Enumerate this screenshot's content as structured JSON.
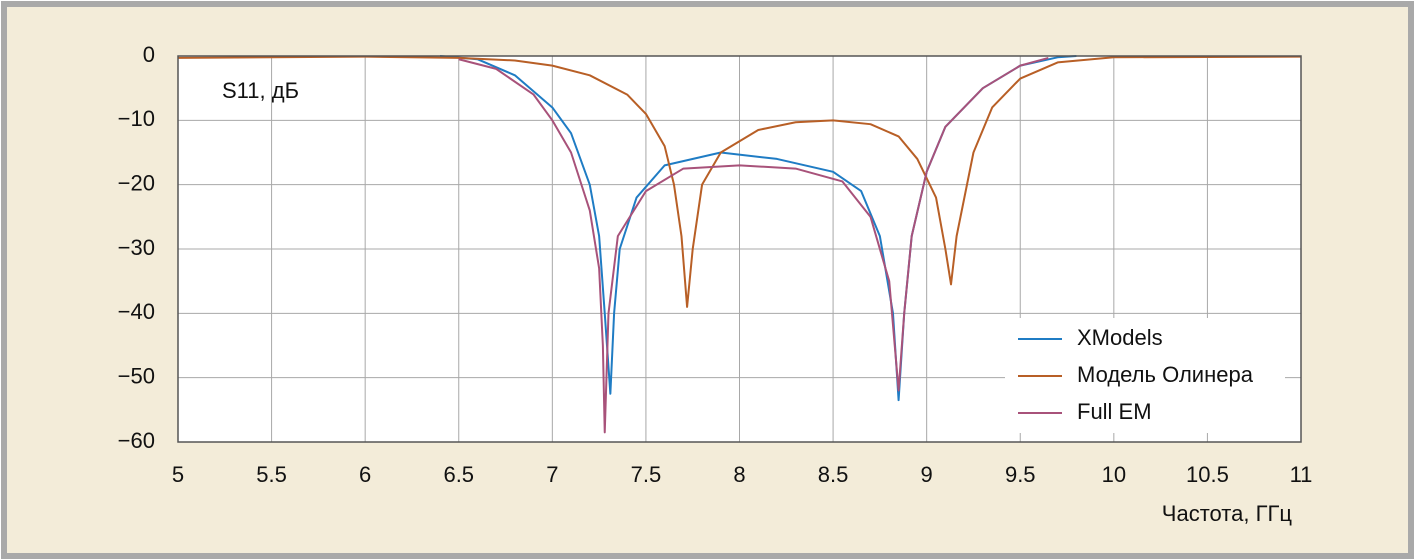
{
  "chart_data": {
    "type": "line",
    "ylabel": "S11, дБ",
    "xlabel": "Частота, ГГц",
    "xlim": [
      5,
      11
    ],
    "xticks": [
      5,
      5.5,
      6,
      6.5,
      7,
      7.5,
      8,
      8.5,
      9,
      9.5,
      10,
      10.5,
      11
    ],
    "ylim": [
      -60,
      0
    ],
    "yticks": [
      0,
      {
        "value": -10,
        "label": "−10"
      },
      {
        "value": -20,
        "label": "−20"
      },
      {
        "value": -30,
        "label": "−30"
      },
      {
        "value": -40,
        "label": "−40"
      },
      {
        "value": -50,
        "label": "−50"
      },
      {
        "value": -60,
        "label": "−60"
      }
    ],
    "grid": true,
    "legend": "lower right",
    "series": [
      {
        "name": "XModels",
        "color": "#1f7cc4",
        "x": [
          6.4,
          6.6,
          6.8,
          7.0,
          7.1,
          7.2,
          7.25,
          7.28,
          7.31,
          7.33,
          7.36,
          7.45,
          7.6,
          7.9,
          8.2,
          8.5,
          8.65,
          8.75,
          8.82,
          8.85,
          8.88,
          8.92,
          9.0,
          9.1,
          9.3,
          9.5,
          9.7,
          9.8
        ],
        "values": [
          0,
          -0.5,
          -3,
          -8,
          -12,
          -20,
          -28,
          -40,
          -52.5,
          -40,
          -30,
          -22,
          -17,
          -15,
          -16,
          -18,
          -21,
          -28,
          -40,
          -53.5,
          -40,
          -28,
          -18,
          -11,
          -5,
          -1.5,
          -0.2,
          0
        ]
      },
      {
        "name": "Модель Олинера",
        "color": "#b85f26",
        "x": [
          5,
          6,
          6.5,
          6.8,
          7.0,
          7.2,
          7.4,
          7.5,
          7.6,
          7.65,
          7.69,
          7.72,
          7.75,
          7.8,
          7.9,
          8.1,
          8.3,
          8.5,
          8.7,
          8.85,
          8.95,
          9.05,
          9.1,
          9.13,
          9.16,
          9.25,
          9.35,
          9.5,
          9.7,
          10,
          11
        ],
        "values": [
          -0.3,
          -0.1,
          -0.3,
          -0.7,
          -1.5,
          -3,
          -6,
          -9,
          -14,
          -20,
          -28,
          -39,
          -30,
          -20,
          -15,
          -11.5,
          -10.3,
          -10,
          -10.6,
          -12.5,
          -16,
          -22,
          -30,
          -35.5,
          -28,
          -15,
          -8,
          -3.5,
          -1,
          -0.2,
          -0.1
        ]
      },
      {
        "name": "Full EM",
        "color": "#a8527a",
        "x": [
          6.5,
          6.7,
          6.9,
          7.0,
          7.1,
          7.2,
          7.25,
          7.27,
          7.28,
          7.3,
          7.35,
          7.5,
          7.7,
          8.0,
          8.3,
          8.55,
          8.7,
          8.8,
          8.85,
          8.88,
          8.92,
          9.0,
          9.1,
          9.3,
          9.5,
          9.65
        ],
        "values": [
          -0.5,
          -2,
          -6,
          -10,
          -15,
          -24,
          -33,
          -45,
          -58.5,
          -40,
          -28,
          -21,
          -17.5,
          -17,
          -17.5,
          -19.5,
          -25,
          -35,
          -52,
          -40,
          -28,
          -18,
          -11,
          -5,
          -1.5,
          -0.3
        ]
      }
    ]
  }
}
